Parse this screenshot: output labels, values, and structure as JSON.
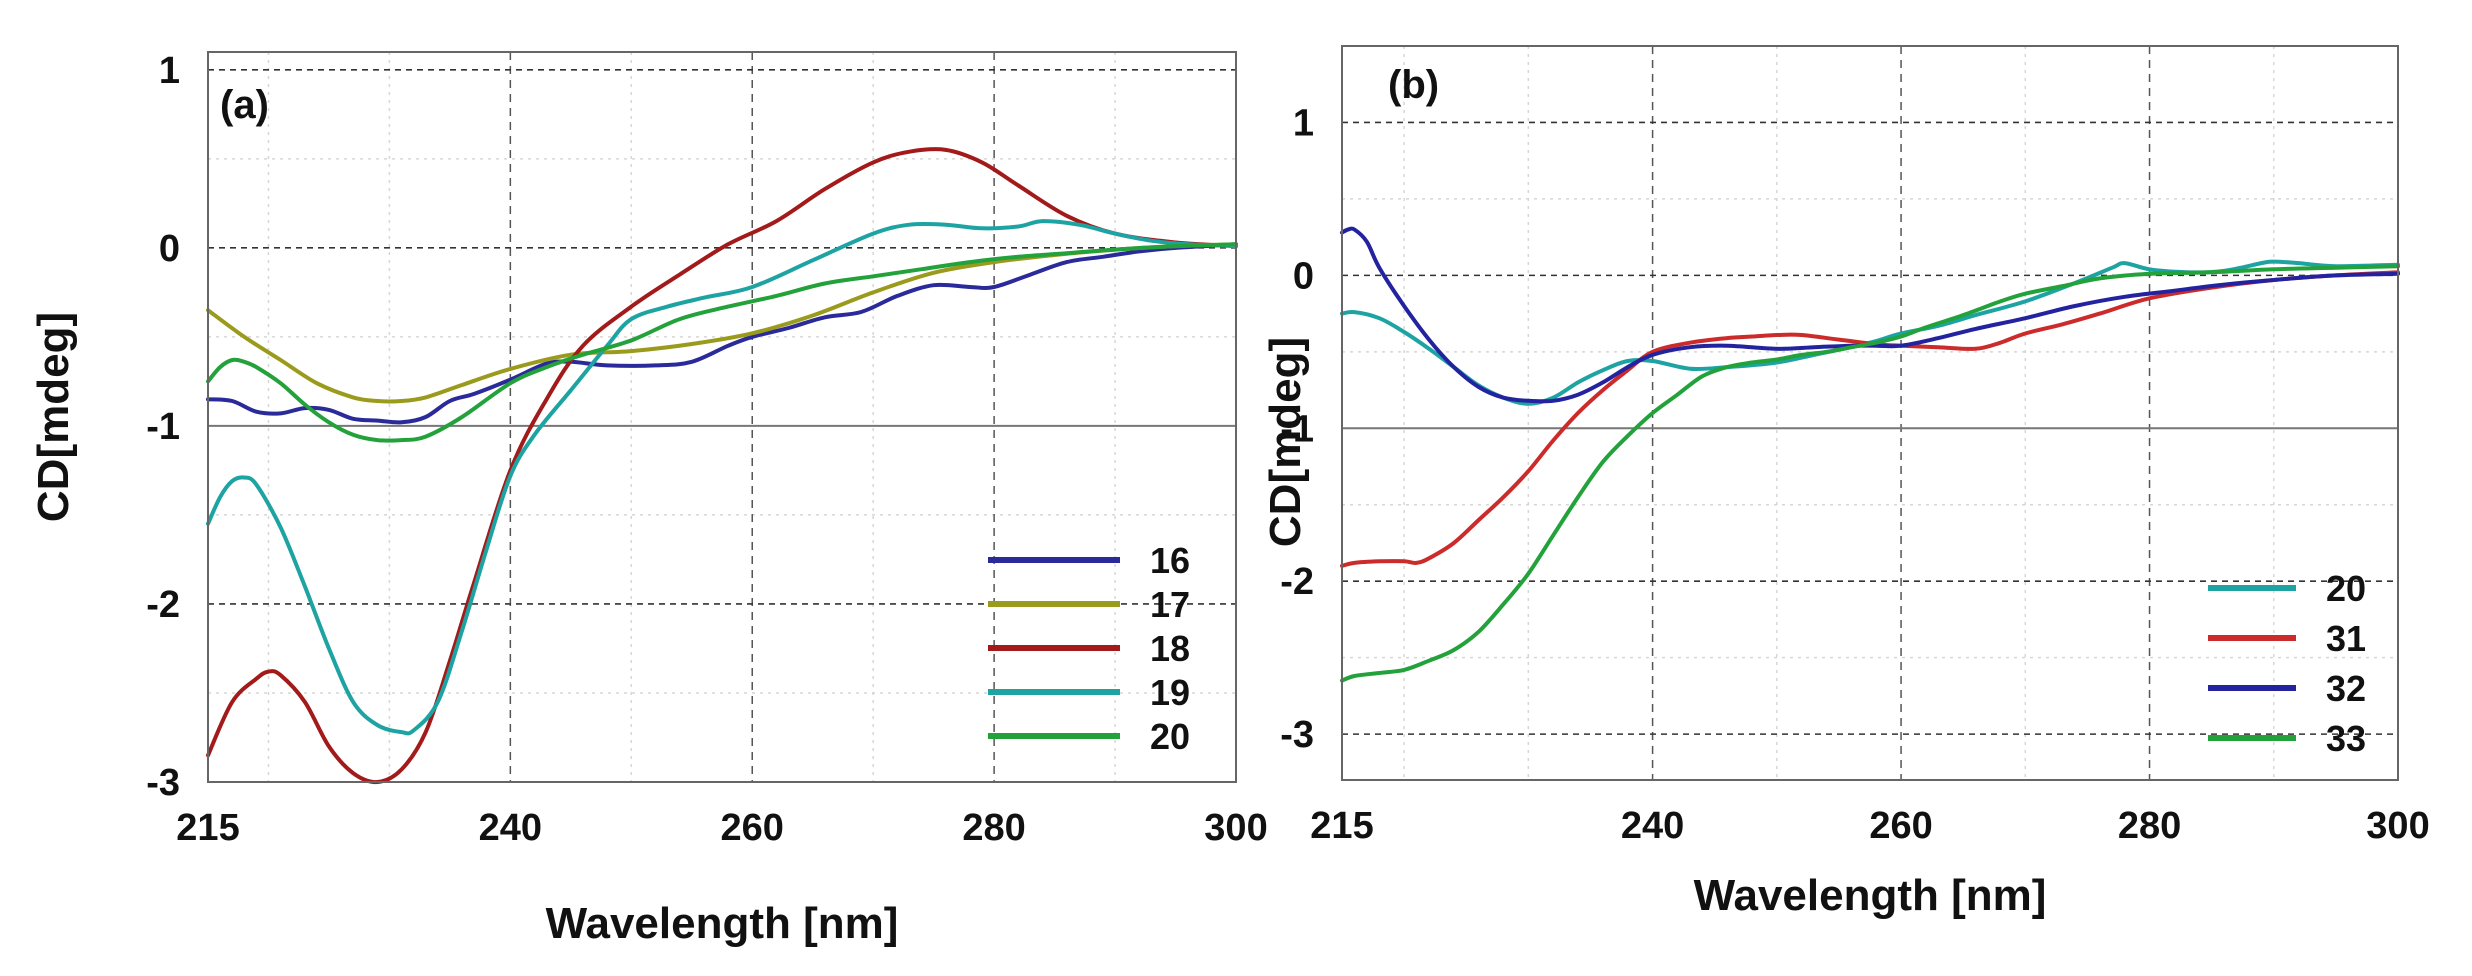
{
  "chart_data": [
    {
      "type": "line",
      "panel_label": "(a)",
      "xlabel": "Wavelength  [nm]",
      "ylabel": "CD[mdeg]",
      "xlim": [
        215,
        300
      ],
      "ylim": [
        -3,
        1.1
      ],
      "xticks": [
        215,
        240,
        260,
        280,
        300
      ],
      "yticks": [
        1,
        0,
        -1,
        -2,
        -3
      ],
      "legend_position": "bottom-right",
      "series": [
        {
          "name": "16",
          "color": "#2b2a9a",
          "x": [
            215,
            217,
            219,
            221,
            223,
            225,
            227,
            229,
            231,
            233,
            235,
            237,
            240,
            243,
            245,
            248,
            252,
            255,
            258,
            260,
            263,
            266,
            269,
            272,
            275,
            278,
            280,
            283,
            286,
            289,
            292,
            295,
            300
          ],
          "y": [
            -0.85,
            -0.86,
            -0.92,
            -0.93,
            -0.9,
            -0.91,
            -0.96,
            -0.97,
            -0.98,
            -0.95,
            -0.86,
            -0.82,
            -0.74,
            -0.65,
            -0.64,
            -0.66,
            -0.66,
            -0.64,
            -0.55,
            -0.5,
            -0.45,
            -0.39,
            -0.36,
            -0.27,
            -0.21,
            -0.22,
            -0.22,
            -0.15,
            -0.08,
            -0.05,
            -0.02,
            0.0,
            0.02
          ]
        },
        {
          "name": "17",
          "color": "#9a9a1c",
          "x": [
            215,
            218,
            221,
            224,
            227,
            229,
            231,
            233,
            236,
            240,
            245,
            250,
            255,
            260,
            265,
            270,
            275,
            280,
            285,
            290,
            295,
            300
          ],
          "y": [
            -0.35,
            -0.5,
            -0.63,
            -0.76,
            -0.84,
            -0.86,
            -0.86,
            -0.84,
            -0.77,
            -0.68,
            -0.6,
            -0.58,
            -0.54,
            -0.48,
            -0.38,
            -0.25,
            -0.14,
            -0.08,
            -0.04,
            -0.01,
            0.01,
            0.02
          ]
        },
        {
          "name": "18",
          "color": "#a21a1a",
          "x": [
            215,
            217,
            219,
            220,
            221,
            223,
            225,
            227,
            229,
            231,
            233,
            235,
            237,
            240,
            243,
            246,
            250,
            254,
            258,
            262,
            266,
            270,
            273,
            276,
            279,
            282,
            286,
            290,
            295,
            300
          ],
          "y": [
            -2.85,
            -2.55,
            -2.42,
            -2.38,
            -2.4,
            -2.55,
            -2.8,
            -2.95,
            -3.0,
            -2.93,
            -2.72,
            -2.32,
            -1.88,
            -1.25,
            -0.85,
            -0.55,
            -0.33,
            -0.15,
            0.02,
            0.15,
            0.33,
            0.48,
            0.54,
            0.55,
            0.48,
            0.35,
            0.18,
            0.08,
            0.03,
            0.01
          ]
        },
        {
          "name": "19",
          "color": "#1ea3a3",
          "x": [
            215,
            216,
            217,
            218,
            219,
            221,
            223,
            225,
            227,
            229,
            231,
            232,
            234,
            236,
            238,
            240,
            242,
            245,
            248,
            250,
            253,
            256,
            260,
            265,
            270,
            273,
            276,
            279,
            282,
            284,
            287,
            290,
            293,
            296,
            300
          ],
          "y": [
            -1.55,
            -1.4,
            -1.31,
            -1.29,
            -1.33,
            -1.57,
            -1.9,
            -2.25,
            -2.55,
            -2.68,
            -2.72,
            -2.71,
            -2.55,
            -2.15,
            -1.7,
            -1.28,
            -1.05,
            -0.8,
            -0.55,
            -0.4,
            -0.33,
            -0.28,
            -0.22,
            -0.07,
            0.08,
            0.13,
            0.13,
            0.11,
            0.12,
            0.15,
            0.13,
            0.08,
            0.04,
            0.02,
            0.01
          ]
        },
        {
          "name": "20",
          "color": "#23a13a",
          "x": [
            215,
            216,
            217,
            218,
            219,
            221,
            223,
            225,
            227,
            229,
            231,
            233,
            236,
            240,
            243,
            246,
            250,
            254,
            258,
            262,
            266,
            270,
            274,
            278,
            282,
            286,
            290,
            295,
            300
          ],
          "y": [
            -0.75,
            -0.67,
            -0.63,
            -0.64,
            -0.67,
            -0.76,
            -0.88,
            -0.98,
            -1.05,
            -1.08,
            -1.08,
            -1.06,
            -0.95,
            -0.76,
            -0.67,
            -0.6,
            -0.52,
            -0.4,
            -0.33,
            -0.27,
            -0.2,
            -0.16,
            -0.12,
            -0.08,
            -0.05,
            -0.03,
            -0.01,
            0.01,
            0.02
          ]
        }
      ]
    },
    {
      "type": "line",
      "panel_label": "(b)",
      "xlabel": "Wavelength [nm]",
      "ylabel": "CD[mdeg]",
      "xlim": [
        215,
        300
      ],
      "ylim": [
        -3.3,
        1.5
      ],
      "xticks": [
        215,
        240,
        260,
        280,
        300
      ],
      "yticks": [
        1,
        0,
        -1,
        -2,
        -3
      ],
      "legend_position": "bottom-right",
      "series": [
        {
          "name": "20",
          "color": "#1ea3a3",
          "x": [
            215,
            216,
            218,
            220,
            222,
            224,
            226,
            228,
            230,
            232,
            234,
            236,
            238,
            240,
            243,
            246,
            250,
            253,
            256,
            258,
            260,
            263,
            266,
            270,
            274,
            277,
            278,
            280,
            283,
            286,
            289,
            290,
            292,
            295,
            300
          ],
          "y": [
            -0.25,
            -0.24,
            -0.28,
            -0.37,
            -0.48,
            -0.6,
            -0.72,
            -0.8,
            -0.84,
            -0.8,
            -0.7,
            -0.62,
            -0.56,
            -0.56,
            -0.61,
            -0.6,
            -0.57,
            -0.52,
            -0.47,
            -0.43,
            -0.38,
            -0.33,
            -0.26,
            -0.17,
            -0.05,
            0.05,
            0.08,
            0.04,
            0.02,
            0.03,
            0.08,
            0.09,
            0.08,
            0.06,
            0.07
          ]
        },
        {
          "name": "31",
          "color": "#cc2b2b",
          "x": [
            215,
            216,
            218,
            220,
            221,
            222,
            224,
            226,
            228,
            230,
            232,
            234,
            236,
            238,
            240,
            243,
            246,
            248,
            250,
            252,
            255,
            258,
            260,
            263,
            266,
            268,
            270,
            273,
            276,
            280,
            285,
            290,
            295,
            300
          ],
          "y": [
            -1.9,
            -1.88,
            -1.87,
            -1.87,
            -1.88,
            -1.85,
            -1.75,
            -1.6,
            -1.45,
            -1.28,
            -1.08,
            -0.9,
            -0.75,
            -0.62,
            -0.5,
            -0.44,
            -0.41,
            -0.4,
            -0.39,
            -0.39,
            -0.42,
            -0.45,
            -0.46,
            -0.47,
            -0.48,
            -0.44,
            -0.38,
            -0.32,
            -0.25,
            -0.15,
            -0.08,
            -0.03,
            0.0,
            0.02
          ]
        },
        {
          "name": "32",
          "color": "#2323a0",
          "x": [
            215,
            215.5,
            216,
            217,
            218,
            220,
            222,
            224,
            226,
            228,
            230,
            232,
            234,
            236,
            238,
            240,
            243,
            246,
            250,
            253,
            256,
            258,
            260,
            263,
            266,
            270,
            274,
            278,
            282,
            286,
            290,
            295,
            300
          ],
          "y": [
            0.28,
            0.3,
            0.3,
            0.22,
            0.05,
            -0.2,
            -0.42,
            -0.6,
            -0.73,
            -0.8,
            -0.82,
            -0.82,
            -0.78,
            -0.7,
            -0.6,
            -0.52,
            -0.47,
            -0.46,
            -0.48,
            -0.47,
            -0.46,
            -0.46,
            -0.46,
            -0.41,
            -0.35,
            -0.28,
            -0.2,
            -0.14,
            -0.1,
            -0.06,
            -0.03,
            0.0,
            0.01
          ]
        },
        {
          "name": "33",
          "color": "#23a13a",
          "x": [
            215,
            216,
            218,
            220,
            222,
            224,
            226,
            228,
            230,
            232,
            234,
            236,
            238,
            240,
            242,
            244,
            246,
            248,
            250,
            252,
            254,
            256,
            258,
            260,
            262,
            265,
            268,
            270,
            273,
            276,
            280,
            285,
            290,
            295,
            300
          ],
          "y": [
            -2.65,
            -2.62,
            -2.6,
            -2.58,
            -2.52,
            -2.45,
            -2.33,
            -2.15,
            -1.95,
            -1.7,
            -1.45,
            -1.22,
            -1.05,
            -0.9,
            -0.78,
            -0.66,
            -0.6,
            -0.57,
            -0.55,
            -0.52,
            -0.5,
            -0.47,
            -0.44,
            -0.4,
            -0.34,
            -0.26,
            -0.17,
            -0.12,
            -0.07,
            -0.02,
            0.01,
            0.02,
            0.04,
            0.05,
            0.06
          ]
        }
      ]
    }
  ]
}
